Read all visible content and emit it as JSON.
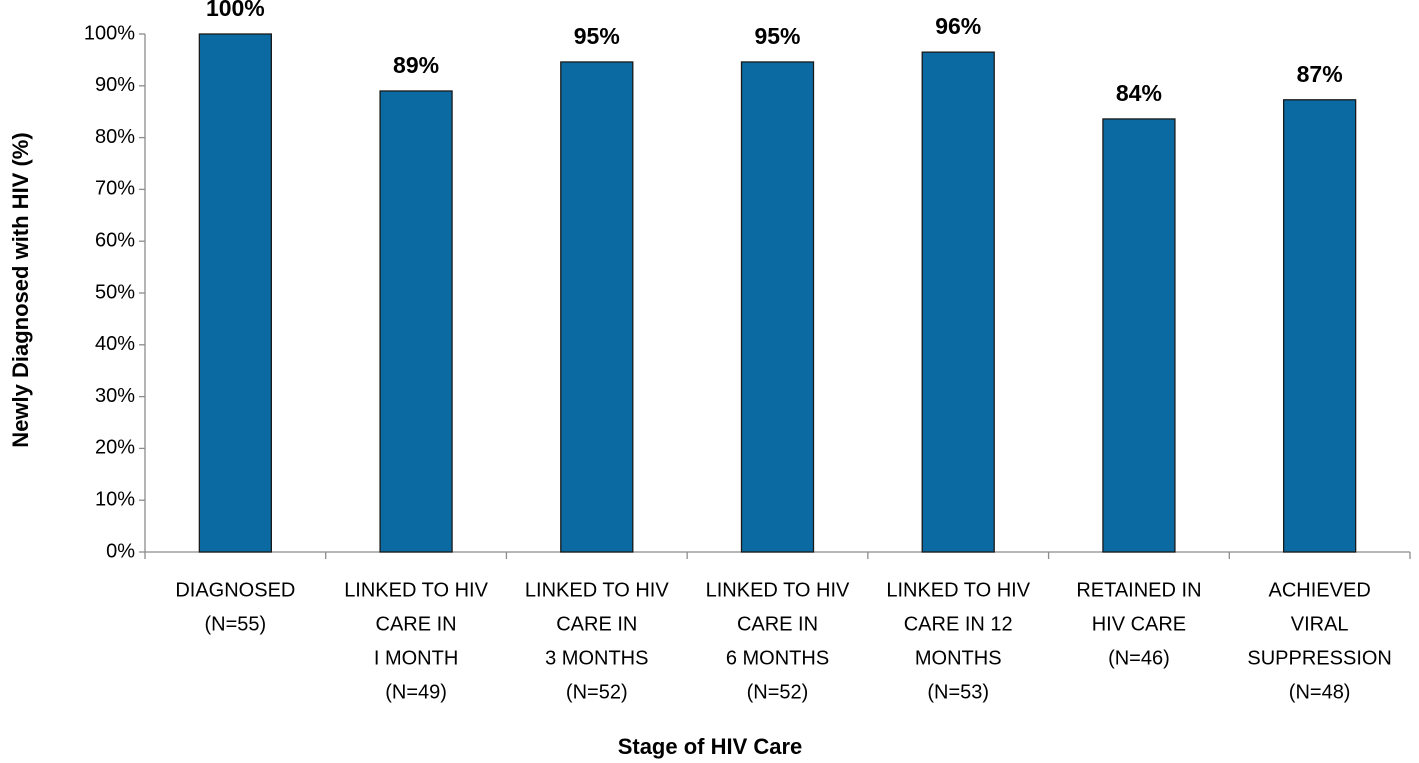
{
  "chart_data": {
    "type": "bar",
    "x_label": "Stage of HIV Care",
    "y_label": "Newly Diagnosed with HIV (%)",
    "categories": [
      [
        "DIAGNOSED",
        "(N=55)"
      ],
      [
        "LINKED TO HIV",
        "CARE IN",
        "I MONTH",
        "(N=49)"
      ],
      [
        "LINKED TO HIV",
        "CARE IN",
        "3 MONTHS",
        "(N=52)"
      ],
      [
        "LINKED TO HIV",
        "CARE IN",
        "6 MONTHS",
        "(N=52)"
      ],
      [
        "LINKED TO HIV",
        "CARE IN 12",
        "MONTHS",
        "(N=53)"
      ],
      [
        "RETAINED IN",
        "HIV CARE",
        "(N=46)"
      ],
      [
        "ACHIEVED",
        "VIRAL",
        "SUPPRESSION",
        "(N=48)"
      ]
    ],
    "values": [
      100,
      89.0,
      94.6,
      94.6,
      96.5,
      83.6,
      87.3
    ],
    "value_labels": [
      "100%",
      "89%",
      "95%",
      "95%",
      "96%",
      "84%",
      "87%"
    ],
    "color": "#0a6aa1",
    "ylim": [
      0,
      100
    ],
    "yticks": [
      {
        "value": 0,
        "label": "0%"
      },
      {
        "value": 10,
        "label": "10%"
      },
      {
        "value": 20,
        "label": "20%"
      },
      {
        "value": 30,
        "label": "30%"
      },
      {
        "value": 40,
        "label": "40%"
      },
      {
        "value": 50,
        "label": "50%"
      },
      {
        "value": 60,
        "label": "60%"
      },
      {
        "value": 70,
        "label": "70%"
      },
      {
        "value": 80,
        "label": "80%"
      },
      {
        "value": 90,
        "label": "90%"
      },
      {
        "value": 100,
        "label": "100%"
      }
    ],
    "grid": false
  }
}
